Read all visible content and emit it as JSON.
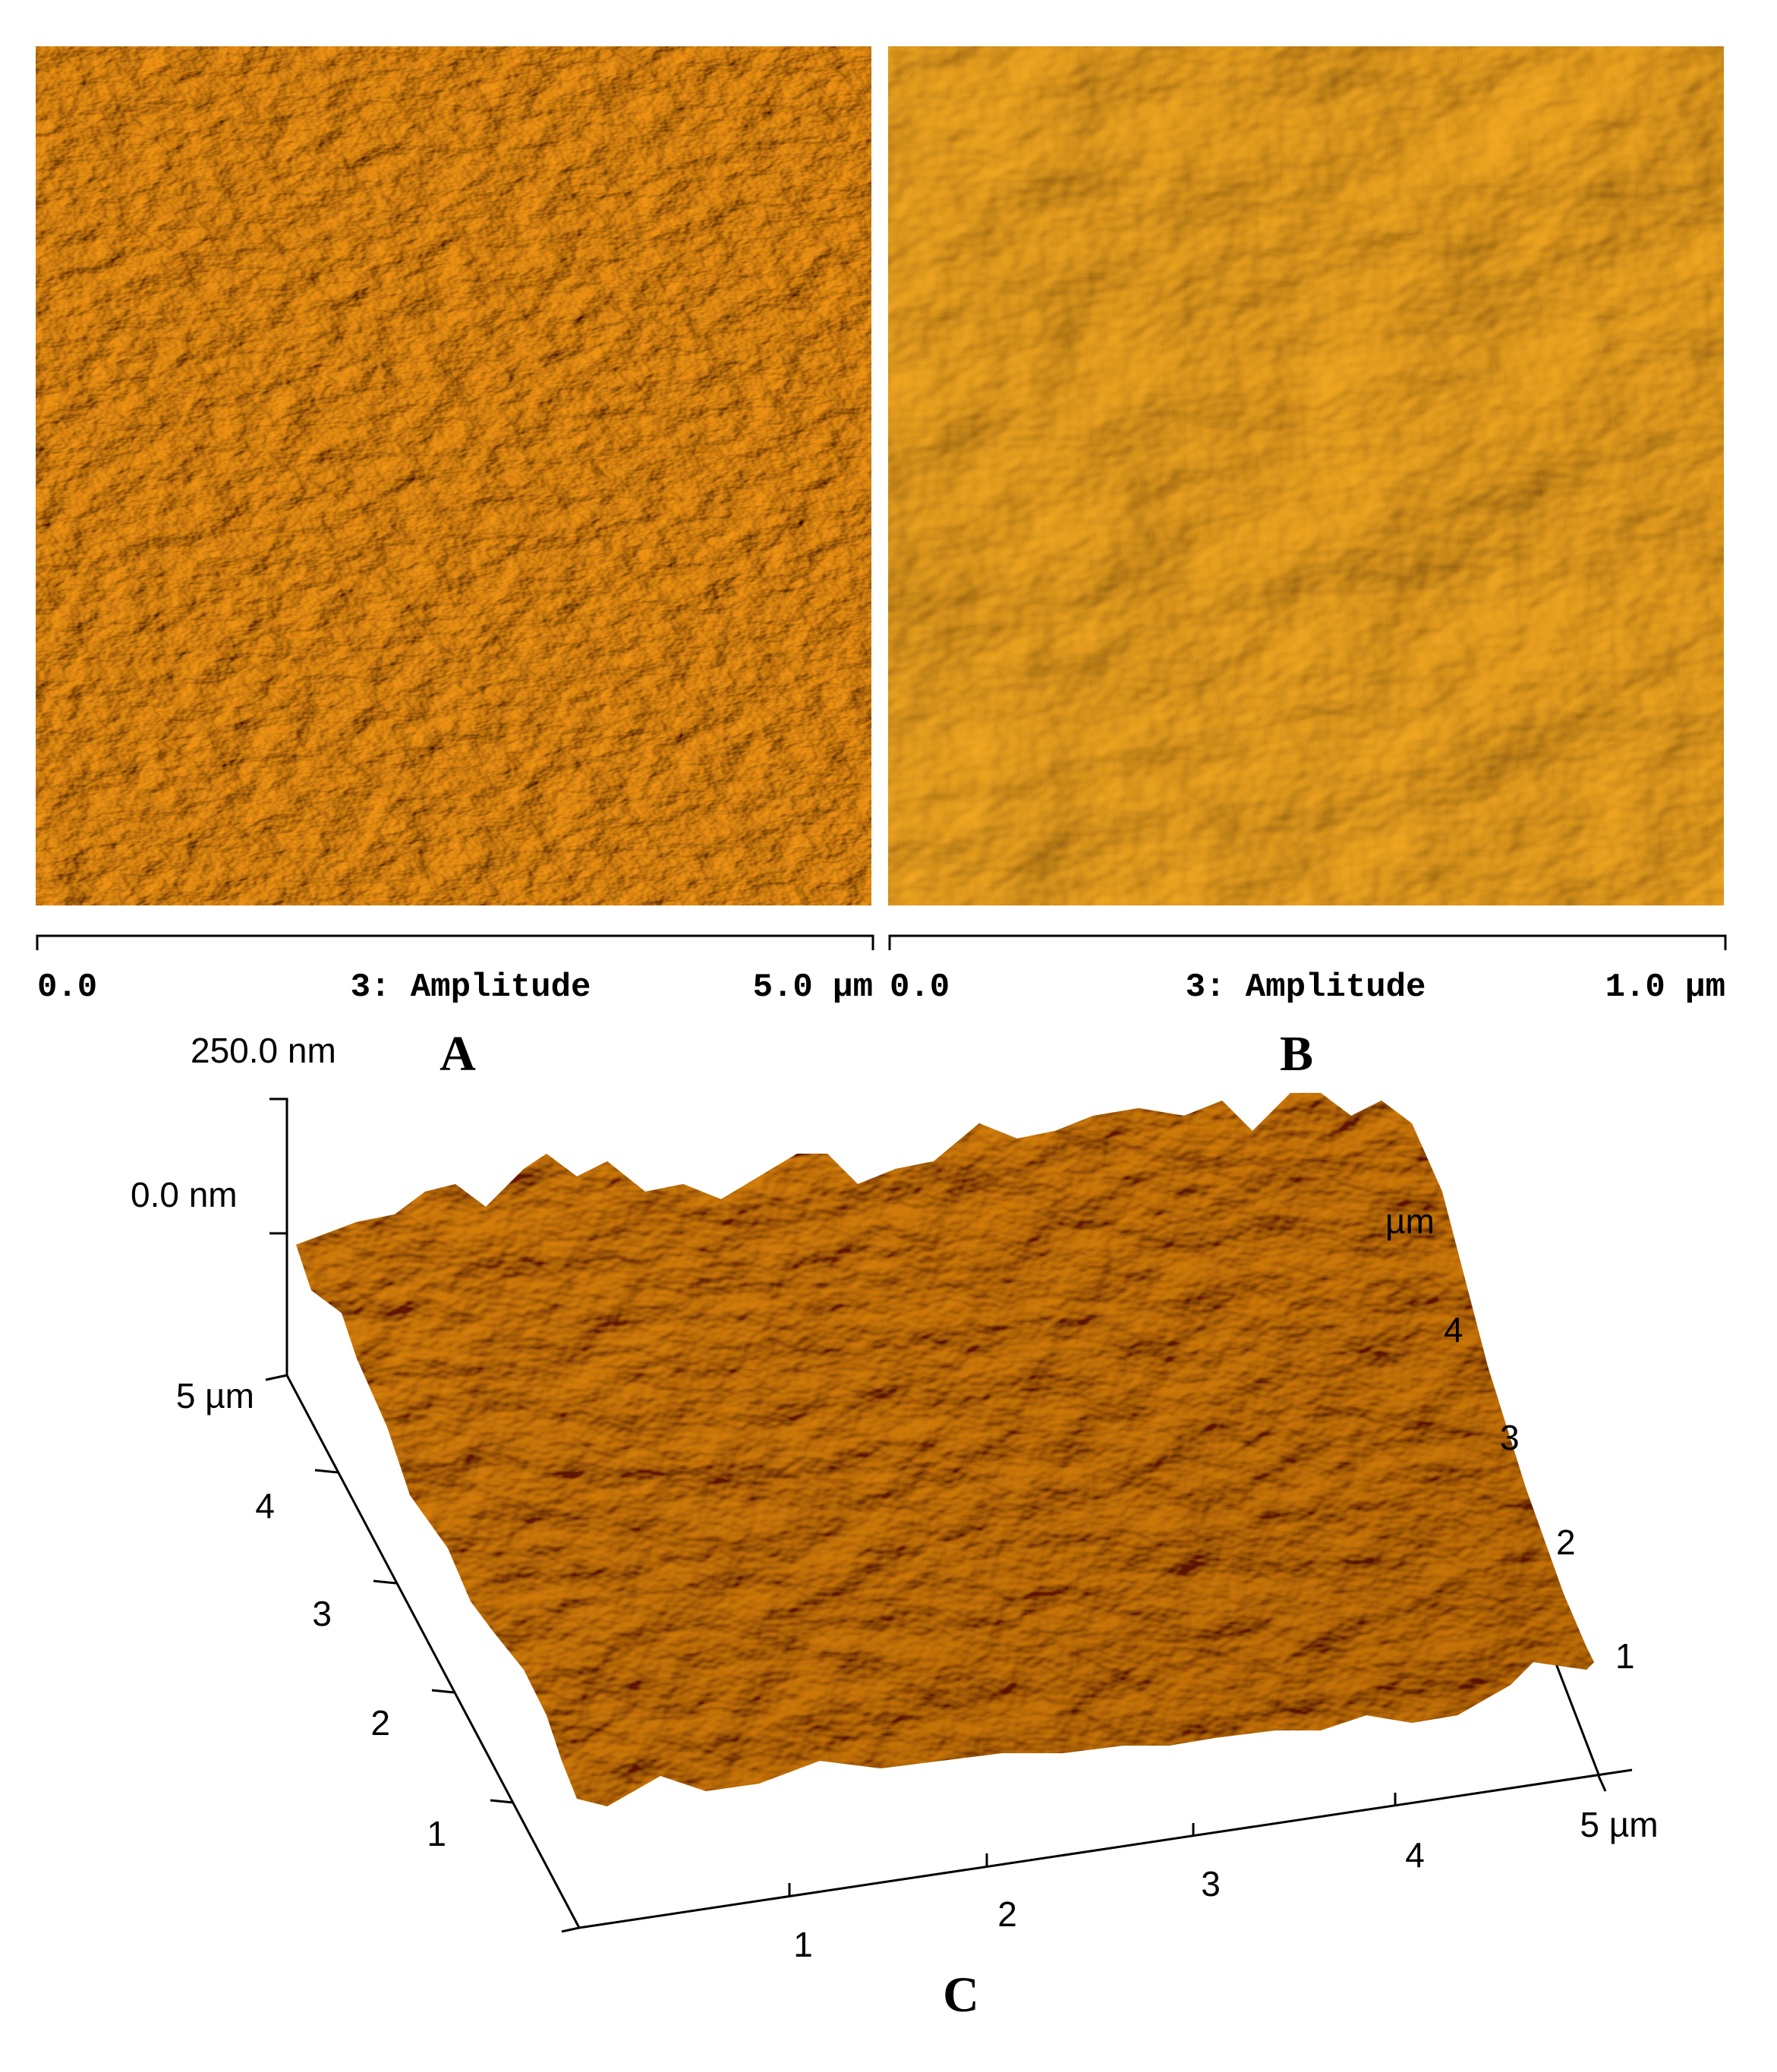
{
  "panels": [
    {
      "label": "A",
      "scale_bar": {
        "start": "0.0",
        "channel": "3: Amplitude",
        "end": "5.0 µm"
      }
    },
    {
      "label": "B",
      "scale_bar": {
        "start": "0.0",
        "channel": "3: Amplitude",
        "end": "1.0 µm"
      }
    }
  ],
  "panel_c": {
    "label": "C",
    "z_axis": {
      "top": "250.0 nm",
      "zero": "0.0 nm"
    },
    "left_axis": [
      "5 µm",
      "4",
      "3",
      "2",
      "1"
    ],
    "right_axis": {
      "unit": "µm",
      "ticks": [
        "4",
        "3",
        "2",
        "1"
      ]
    },
    "bottom_axis": [
      "1",
      "2",
      "3",
      "4",
      "5 µm"
    ]
  }
}
